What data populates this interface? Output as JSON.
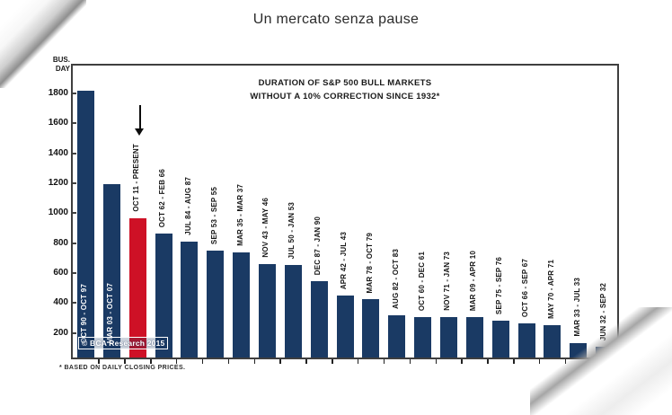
{
  "page": {
    "title": "Un mercato senza pause"
  },
  "chart_data": {
    "type": "bar",
    "title_lines": [
      "DURATION OF S&P 500 BULL MARKETS",
      "WITHOUT A 10% CORRECTION SINCE 1932*"
    ],
    "ylabel_lines": [
      "BUS.",
      "DAY"
    ],
    "yticks": [
      200,
      400,
      600,
      800,
      1000,
      1200,
      1400,
      1600,
      1800
    ],
    "ylim": [
      0,
      1950
    ],
    "grid": false,
    "legend": "none",
    "categories": [
      "OCT 90 - OCT 97",
      "MAR 03 - OCT 07",
      "OCT 11 - PRESENT",
      "OCT 62 - FEB 66",
      "JUL 84 - AUG 87",
      "SEP 53 - SEP 55",
      "MAR 35 - MAR 37",
      "NOV 43 - MAY 46",
      "JUL 50 - JAN 53",
      "DEC 87 - JAN 90",
      "APR 42 - JUL 43",
      "MAR 78 - OCT 79",
      "AUG 82 - OCT 83",
      "OCT 60 - DEC 61",
      "NOV 71 - JAN 73",
      "MAR 09 - APR 10",
      "SEP 75 - SEP 76",
      "OCT 66 - SEP 67",
      "MAY 70 - APR 71",
      "MAR 33 - JUL 33",
      "JUN 32 - SEP 32"
    ],
    "values": [
      1820,
      1195,
      965,
      865,
      810,
      750,
      735,
      660,
      655,
      545,
      450,
      425,
      315,
      305,
      305,
      305,
      280,
      265,
      250,
      130,
      110
    ],
    "bar_color": "#1a3a64",
    "highlight": {
      "index": 2,
      "color": "#ce1126",
      "annotation": "down-arrow"
    },
    "label_inside_indices": [
      0,
      1
    ],
    "watermark": "© BCA Research 2015",
    "footnote": "* BASED ON DAILY CLOSING PRICES."
  }
}
